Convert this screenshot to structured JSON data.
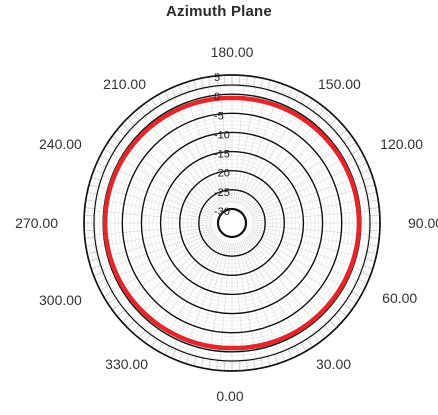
{
  "chart_data": {
    "type": "polar_line",
    "title": "Azimuth Plane",
    "angle_tick_labels": [
      "0.00",
      "30.00",
      "60.00",
      "90.00",
      "120.00",
      "150.00",
      "180.00",
      "210.00",
      "240.00",
      "270.00",
      "300.00",
      "330.00"
    ],
    "angle_direction": "counterclockwise",
    "angle_zero_position": "bottom",
    "radial_tick_labels": [
      "5",
      "0",
      "-5",
      "-10",
      "-15",
      "-20",
      "-25",
      "-30"
    ],
    "radial_range": [
      -30,
      5
    ],
    "grid": true,
    "series": [
      {
        "color": "#2aa7a3",
        "angles": [
          0,
          30,
          60,
          90,
          120,
          150,
          180,
          210,
          240,
          270,
          300,
          330
        ],
        "values": [
          -0.6,
          -0.4,
          -0.3,
          -0.2,
          -0.3,
          -0.5,
          -0.7,
          -0.5,
          -0.3,
          -0.2,
          -0.4,
          -0.6
        ]
      },
      {
        "color": "#e5252a",
        "angles": [
          0,
          30,
          60,
          90,
          120,
          150,
          180,
          210,
          240,
          270,
          300,
          330
        ],
        "values": [
          -1.0,
          -0.7,
          -0.6,
          -0.5,
          -0.6,
          -0.8,
          -1.0,
          -0.8,
          -0.6,
          -0.5,
          -0.7,
          -0.9
        ]
      }
    ]
  }
}
